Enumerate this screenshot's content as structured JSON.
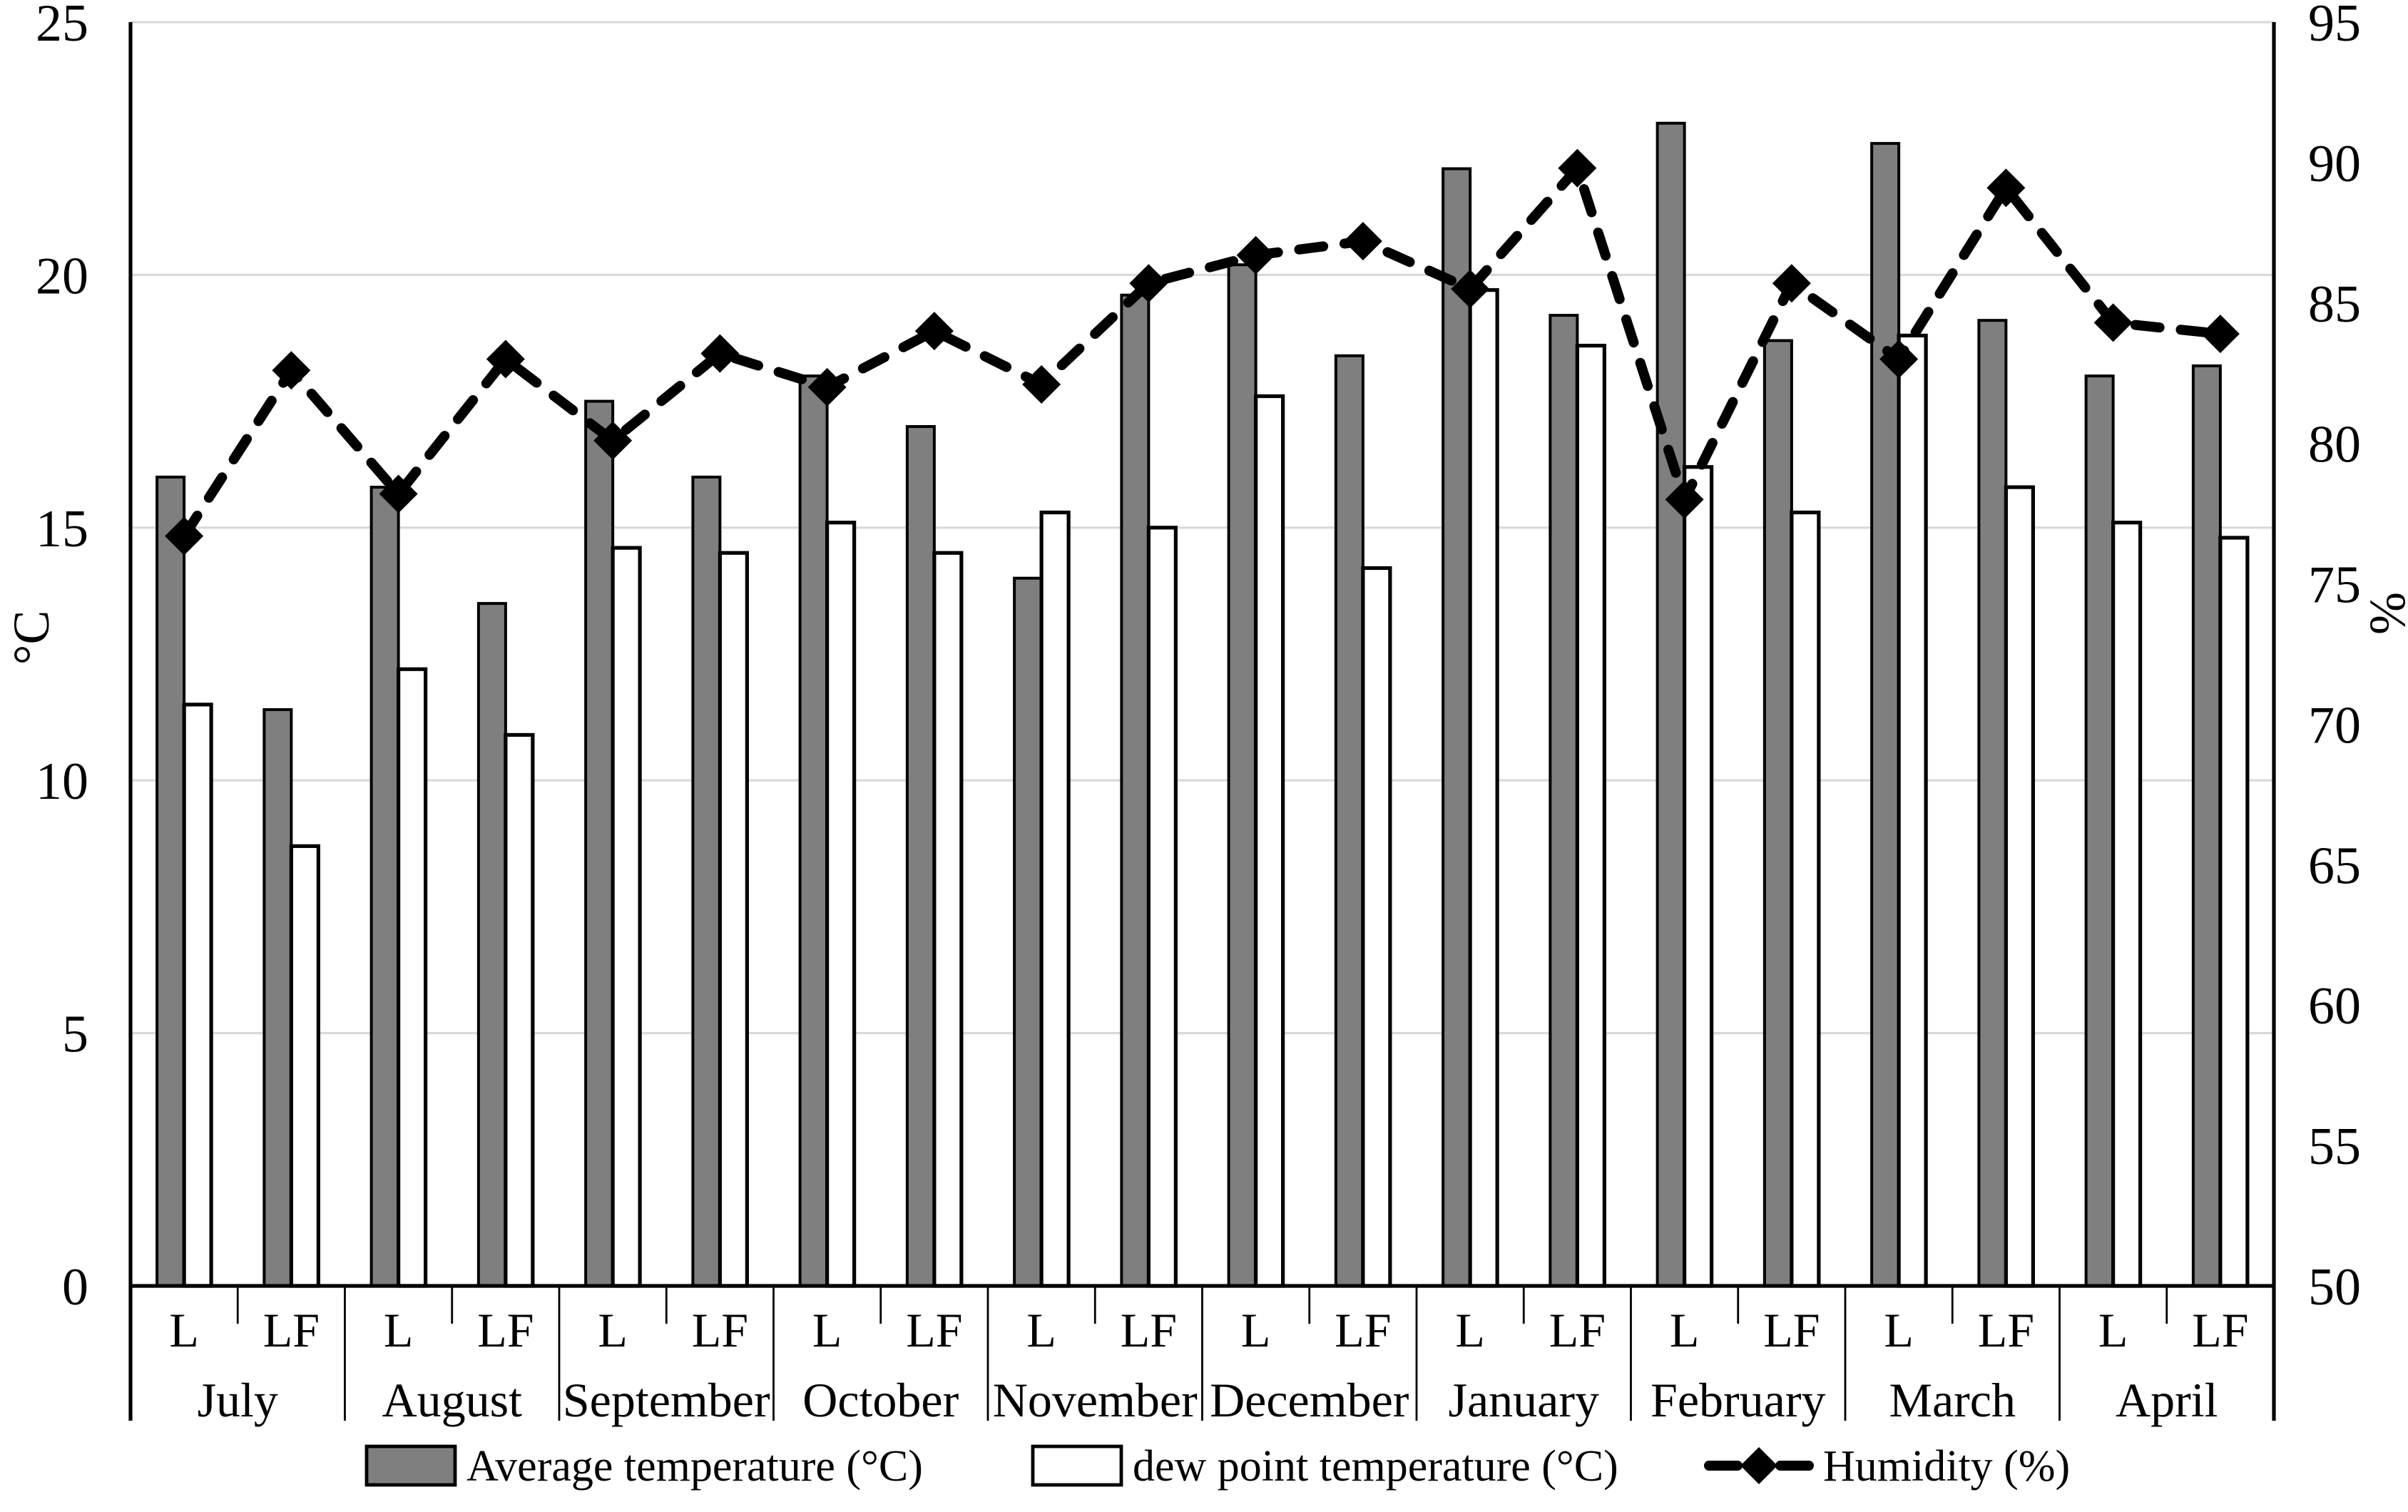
{
  "chart_data": {
    "type": "bar+line",
    "title": "",
    "categories": {
      "months": [
        "July",
        "August",
        "September",
        "October",
        "November",
        "December",
        "January",
        "February",
        "March",
        "April"
      ],
      "sublabels": [
        "L",
        "LF"
      ]
    },
    "series": [
      {
        "name": "Average temperature (°C)",
        "type": "bar",
        "axis": "left",
        "color": "#7f7f7f",
        "values": [
          16.0,
          11.4,
          15.8,
          13.5,
          17.5,
          16.0,
          18.0,
          17.0,
          14.0,
          19.6,
          20.2,
          18.4,
          22.1,
          19.2,
          23.0,
          18.7,
          22.6,
          19.1,
          18.0,
          18.2
        ]
      },
      {
        "name": "dew point temperature (°C)",
        "type": "bar",
        "axis": "left",
        "color": "#ffffff",
        "values": [
          11.5,
          8.7,
          12.2,
          10.9,
          14.6,
          14.5,
          15.1,
          14.5,
          15.3,
          15.0,
          17.6,
          14.2,
          19.7,
          18.6,
          16.2,
          15.3,
          18.8,
          15.8,
          15.1,
          14.8
        ]
      },
      {
        "name": "Humidity (%)",
        "type": "line",
        "axis": "right",
        "color": "#000000",
        "marker": "diamond",
        "dashed": true,
        "values": [
          76.7,
          82.6,
          78.2,
          83.0,
          80.1,
          83.2,
          82.0,
          84.0,
          82.1,
          85.7,
          86.7,
          87.2,
          85.5,
          89.8,
          78.0,
          85.7,
          83.0,
          89.1,
          84.3,
          83.9
        ]
      }
    ],
    "left_axis": {
      "label": "°C",
      "min": 0,
      "max": 25,
      "ticks": [
        0,
        5,
        10,
        15,
        20,
        25
      ]
    },
    "right_axis": {
      "label": "%",
      "min": 50,
      "max": 95,
      "ticks": [
        50,
        55,
        60,
        65,
        70,
        75,
        80,
        85,
        90,
        95
      ]
    },
    "legend_position": "bottom",
    "grid": "horizontal",
    "gridline_color": "#d9d9d9"
  }
}
